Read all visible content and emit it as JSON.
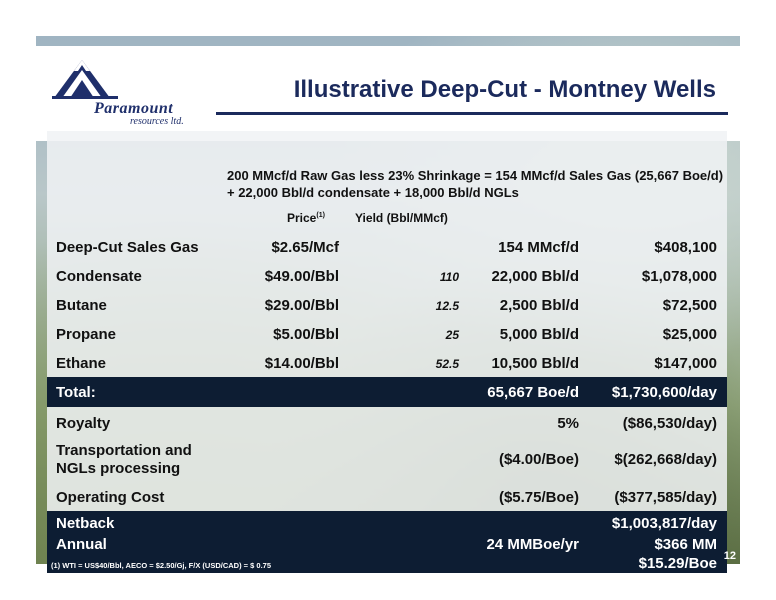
{
  "logo": {
    "name": "Paramount",
    "subtitle": "resources ltd."
  },
  "title": "Illustrative Deep-Cut - Montney Wells",
  "header_note": "200 MMcf/d Raw Gas less 23% Shrinkage = 154 MMcf/d Sales Gas (25,667 Boe/d) + 22,000 Bbl/d condensate + 18,000 Bbl/d NGLs",
  "columns": {
    "price": "Price",
    "price_sup": "(1)",
    "yield": "Yield (Bbl/MMcf)"
  },
  "rows": [
    {
      "label": "Deep-Cut Sales Gas",
      "price": "$2.65/Mcf",
      "yield": "",
      "volume": "154 MMcf/d",
      "value": "$408,100"
    },
    {
      "label": "Condensate",
      "price": "$49.00/Bbl",
      "yield": "110",
      "volume": "22,000 Bbl/d",
      "value": "$1,078,000"
    },
    {
      "label": "Butane",
      "price": "$29.00/Bbl",
      "yield": "12.5",
      "volume": "2,500 Bbl/d",
      "value": "$72,500"
    },
    {
      "label": "Propane",
      "price": "$5.00/Bbl",
      "yield": "25",
      "volume": "5,000 Bbl/d",
      "value": "$25,000"
    },
    {
      "label": "Ethane",
      "price": "$14.00/Bbl",
      "yield": "52.5",
      "volume": "10,500 Bbl/d",
      "value": "$147,000"
    }
  ],
  "total": {
    "label": "Total:",
    "volume": "65,667 Boe/d",
    "value": "$1,730,600/day"
  },
  "royalty": {
    "label": "Royalty",
    "volume": "5%",
    "value": "($86,530/day)"
  },
  "transport": {
    "label_line1": "Transportation and",
    "label_line2": "NGLs processing",
    "volume": "($4.00/Boe)",
    "value": "$(262,668/day)"
  },
  "opcost": {
    "label": "Operating Cost",
    "volume": "($5.75/Boe)",
    "value": "($377,585/day)"
  },
  "netback": {
    "label": "Netback",
    "value": "$1,003,817/day"
  },
  "annual": {
    "label": "Annual",
    "volume": "24 MMBoe/yr",
    "value": "$366 MM"
  },
  "per_boe": "$15.29/Boe",
  "footnote": "(1) WTI = US$40/Bbl, AECO = $2.50/Gj, F/X (USD/CAD) = $ 0.75",
  "page_number": "12",
  "colors": {
    "navy": "#0d1d33",
    "title": "#1b2a5c"
  }
}
